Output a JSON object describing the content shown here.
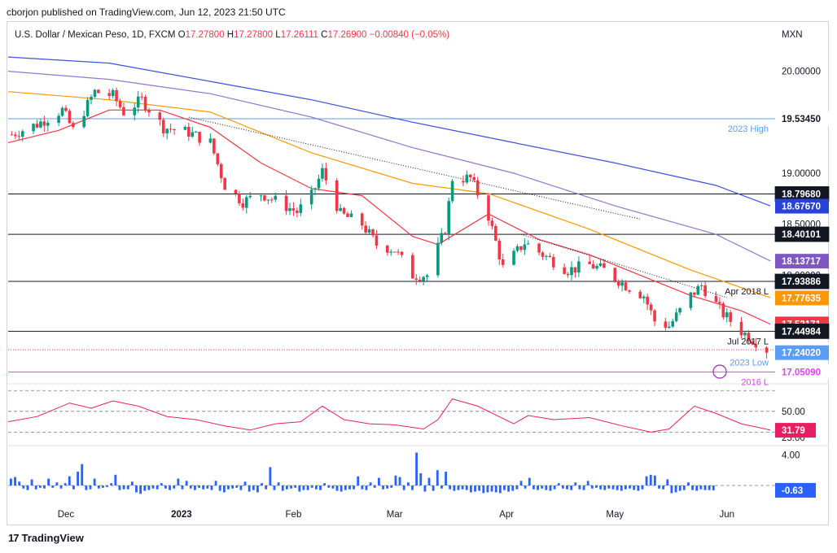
{
  "header": {
    "publish_line": "cborjon published on TradingView.com, Jun 12, 2023 21:50 UTC"
  },
  "ohlc_line": {
    "symbol": "U.S. Dollar / Mexican Peso, 1D, FXCM",
    "o_label": "O",
    "o_value": "17.27800",
    "h_label": "H",
    "h_value": "17.27800",
    "l_label": "L",
    "l_value": "17.26111",
    "c_label": "C",
    "c_value": "17.26900",
    "change": "−0.00840 (−0.05%)",
    "currency": "MXN"
  },
  "logo": {
    "text": "TradingView",
    "mark": "17"
  },
  "colors": {
    "up": "#089981",
    "down": "#f23645",
    "ema_short": "#f23645",
    "ema_mid": "#ff9800",
    "ema_long": "#9575cd",
    "ema_200": "#3f51d5",
    "rsi": "#e91e63",
    "hist": "#2962ff",
    "level_line": "#131722",
    "high_line": "#5b9cf6",
    "low_line": "#e040fb"
  },
  "chart_data": [
    {
      "type": "line",
      "title": "U.S. Dollar / Mexican Peso, 1D, FXCM",
      "ylim": [
        16.95,
        20.3
      ],
      "ytick_labels": [
        "20.00000",
        "19.00000",
        "18.50000",
        "18.00000"
      ],
      "ytick_values": [
        20.0,
        19.0,
        18.5,
        18.0
      ],
      "xtick_labels": [
        "Dec",
        "2023",
        "Feb",
        "Mar",
        "Apr",
        "May",
        "Jun"
      ],
      "x_range": [
        "2022-11-14",
        "2023-06-13"
      ],
      "price_axis_labels": [
        {
          "value": 19.5345,
          "text": "19.53450",
          "line": "2023 High",
          "kind": "high"
        },
        {
          "value": 18.7968,
          "text": "18.79680",
          "line": "",
          "kind": "level"
        },
        {
          "value": 18.6767,
          "text": "18.67670",
          "kind": "ema200"
        },
        {
          "value": 18.40101,
          "text": "18.40101",
          "line": "",
          "kind": "level"
        },
        {
          "value": 18.13717,
          "text": "18.13717",
          "kind": "ema100"
        },
        {
          "value": 17.93886,
          "text": "17.93886",
          "line": "Apr 2018 L",
          "kind": "level"
        },
        {
          "value": 17.77635,
          "text": "17.77635",
          "kind": "ema50"
        },
        {
          "value": 17.52171,
          "text": "17.52171",
          "kind": "ema20"
        },
        {
          "value": 17.44984,
          "text": "17.44984",
          "line": "Jul 2017 L",
          "kind": "level"
        },
        {
          "value": 17.269,
          "text": "17.26900",
          "kind": "last"
        },
        {
          "value": 17.2402,
          "text": "17.24020",
          "line": "2023 Low",
          "kind": "low2023"
        },
        {
          "value": 17.0509,
          "text": "17.05090",
          "line": "2016 L",
          "kind": "low2016"
        }
      ],
      "series": [
        {
          "name": "",
          "kind": "close",
          "points": [
            [
              "2022-11-15",
              19.38
            ],
            [
              "2022-11-22",
              19.48
            ],
            [
              "2022-11-29",
              19.62
            ],
            [
              "2022-12-02",
              19.42
            ],
            [
              "2022-12-08",
              19.8
            ],
            [
              "2022-12-13",
              19.76
            ],
            [
              "2022-12-16",
              19.6
            ],
            [
              "2022-12-21",
              19.72
            ],
            [
              "2022-12-27",
              19.45
            ],
            [
              "2023-01-03",
              19.4
            ],
            [
              "2023-01-09",
              19.3
            ],
            [
              "2023-01-13",
              18.88
            ],
            [
              "2023-01-18",
              18.72
            ],
            [
              "2023-01-23",
              18.8
            ],
            [
              "2023-01-27",
              18.73
            ],
            [
              "2023-02-02",
              18.62
            ],
            [
              "2023-02-06",
              18.78
            ],
            [
              "2023-02-09",
              19.02
            ],
            [
              "2023-02-14",
              18.6
            ],
            [
              "2023-02-20",
              18.5
            ],
            [
              "2023-02-24",
              18.3
            ],
            [
              "2023-03-01",
              18.25
            ],
            [
              "2023-03-06",
              18.0
            ],
            [
              "2023-03-10",
              18.0
            ],
            [
              "2023-03-15",
              18.45
            ],
            [
              "2023-03-17",
              18.95
            ],
            [
              "2023-03-22",
              18.95
            ],
            [
              "2023-03-27",
              18.58
            ],
            [
              "2023-03-31",
              18.07
            ],
            [
              "2023-04-06",
              18.32
            ],
            [
              "2023-04-12",
              18.18
            ],
            [
              "2023-04-18",
              18.05
            ],
            [
              "2023-04-24",
              18.1
            ],
            [
              "2023-04-28",
              18.05
            ],
            [
              "2023-05-04",
              17.9
            ],
            [
              "2023-05-09",
              17.8
            ],
            [
              "2023-05-12",
              17.55
            ],
            [
              "2023-05-16",
              17.5
            ],
            [
              "2023-05-22",
              17.8
            ],
            [
              "2023-05-25",
              17.9
            ],
            [
              "2023-05-31",
              17.62
            ],
            [
              "2023-06-05",
              17.45
            ],
            [
              "2023-06-09",
              17.35
            ],
            [
              "2023-06-12",
              17.27
            ]
          ]
        },
        {
          "name": "",
          "kind": "ema20",
          "points": [
            [
              "2022-11-14",
              19.3
            ],
            [
              "2022-11-28",
              19.42
            ],
            [
              "2022-12-12",
              19.62
            ],
            [
              "2022-12-26",
              19.62
            ],
            [
              "2023-01-09",
              19.45
            ],
            [
              "2023-01-23",
              19.1
            ],
            [
              "2023-02-06",
              18.85
            ],
            [
              "2023-02-20",
              18.78
            ],
            [
              "2023-03-06",
              18.38
            ],
            [
              "2023-03-13",
              18.3
            ],
            [
              "2023-03-27",
              18.6
            ],
            [
              "2023-04-10",
              18.35
            ],
            [
              "2023-04-24",
              18.2
            ],
            [
              "2023-05-08",
              18.0
            ],
            [
              "2023-05-22",
              17.8
            ],
            [
              "2023-06-05",
              17.65
            ],
            [
              "2023-06-13",
              17.52
            ]
          ]
        },
        {
          "name": "",
          "kind": "ema50",
          "points": [
            [
              "2022-11-14",
              19.8
            ],
            [
              "2022-12-12",
              19.72
            ],
            [
              "2023-01-09",
              19.6
            ],
            [
              "2023-02-06",
              19.2
            ],
            [
              "2023-03-06",
              18.9
            ],
            [
              "2023-03-27",
              18.8
            ],
            [
              "2023-04-24",
              18.45
            ],
            [
              "2023-05-22",
              18.05
            ],
            [
              "2023-06-13",
              17.78
            ]
          ]
        },
        {
          "name": "",
          "kind": "ema100",
          "points": [
            [
              "2022-11-14",
              20.0
            ],
            [
              "2022-12-12",
              19.92
            ],
            [
              "2023-01-09",
              19.78
            ],
            [
              "2023-02-06",
              19.55
            ],
            [
              "2023-03-06",
              19.25
            ],
            [
              "2023-04-03",
              19.0
            ],
            [
              "2023-05-01",
              18.68
            ],
            [
              "2023-05-29",
              18.4
            ],
            [
              "2023-06-13",
              18.14
            ]
          ]
        },
        {
          "name": "",
          "kind": "ema200",
          "points": [
            [
              "2022-11-14",
              20.14
            ],
            [
              "2022-12-12",
              20.08
            ],
            [
              "2023-01-09",
              19.9
            ],
            [
              "2023-02-06",
              19.72
            ],
            [
              "2023-03-06",
              19.5
            ],
            [
              "2023-04-03",
              19.3
            ],
            [
              "2023-05-01",
              19.1
            ],
            [
              "2023-05-29",
              18.88
            ],
            [
              "2023-06-13",
              18.68
            ]
          ]
        }
      ]
    },
    {
      "type": "line",
      "title": "",
      "ylim": [
        17,
        78
      ],
      "ytick_labels": [
        "50.00",
        "25.00"
      ],
      "ytick_values": [
        50,
        25
      ],
      "last_label": "31.79",
      "last_value": 31.79,
      "series": [
        {
          "name": "",
          "kind": "rsi",
          "points": [
            [
              "2022-11-14",
              40
            ],
            [
              "2022-11-22",
              45
            ],
            [
              "2022-12-01",
              58
            ],
            [
              "2022-12-07",
              53
            ],
            [
              "2022-12-13",
              60
            ],
            [
              "2022-12-20",
              55
            ],
            [
              "2022-12-28",
              45
            ],
            [
              "2023-01-05",
              42
            ],
            [
              "2023-01-13",
              36
            ],
            [
              "2023-01-20",
              32
            ],
            [
              "2023-01-27",
              38
            ],
            [
              "2023-02-03",
              40
            ],
            [
              "2023-02-09",
              55
            ],
            [
              "2023-02-15",
              42
            ],
            [
              "2023-02-22",
              38
            ],
            [
              "2023-03-01",
              37
            ],
            [
              "2023-03-09",
              33
            ],
            [
              "2023-03-13",
              42
            ],
            [
              "2023-03-17",
              62
            ],
            [
              "2023-03-24",
              55
            ],
            [
              "2023-04-03",
              38
            ],
            [
              "2023-04-07",
              46
            ],
            [
              "2023-04-14",
              42
            ],
            [
              "2023-04-24",
              44
            ],
            [
              "2023-05-03",
              36
            ],
            [
              "2023-05-11",
              30
            ],
            [
              "2023-05-16",
              33
            ],
            [
              "2023-05-23",
              55
            ],
            [
              "2023-05-29",
              48
            ],
            [
              "2023-06-05",
              38
            ],
            [
              "2023-06-13",
              32
            ]
          ]
        }
      ]
    },
    {
      "type": "bar",
      "title": "",
      "ylim": [
        -1.6,
        5
      ],
      "ytick_labels": [
        "4.00"
      ],
      "ytick_values": [
        4
      ],
      "last_label": "-0.63",
      "last_value": -0.63,
      "series": [
        {
          "name": "",
          "kind": "histogram",
          "values": [
            0.9,
            1.1,
            0.5,
            -0.4,
            -0.6,
            0.8,
            -0.5,
            -0.3,
            -0.4,
            0.9,
            -0.3,
            0.4,
            -0.4,
            0.3,
            1.2,
            -0.5,
            1.8,
            2.8,
            -0.6,
            -0.5,
            0.9,
            -0.4,
            -0.3,
            -0.2,
            0.3,
            1.4,
            -0.6,
            -0.5,
            -0.5,
            0.5,
            -0.9,
            -1.1,
            -0.7,
            -0.6,
            -0.4,
            -0.5,
            0.3,
            -0.4,
            -0.6,
            -0.4,
            0.9,
            -0.5,
            0.6,
            -0.4,
            -0.6,
            -0.3,
            -0.5,
            -0.4,
            -0.6,
            0.6,
            -0.7,
            -0.9,
            -0.5,
            -0.4,
            -0.3,
            -0.6,
            0.5,
            -0.8,
            -0.6,
            -0.9,
            0.3,
            -0.5,
            2.4,
            -0.6,
            0.4,
            -0.7,
            -0.5,
            -0.4,
            -0.3,
            -0.8,
            -0.6,
            -0.6,
            -0.3,
            -0.5,
            -0.6,
            0.3,
            -0.3,
            -0.4,
            -0.7,
            -0.8,
            -0.6,
            -0.5,
            -0.5,
            1.2,
            -0.5,
            -0.6,
            0.4,
            -0.3,
            1.0,
            -0.5,
            -0.4,
            -0.3,
            1.3,
            1.1,
            -0.6,
            0.4,
            -0.6,
            4.3,
            1.6,
            -0.8,
            1.0,
            -0.7,
            2.0,
            -0.4,
            1.8,
            -0.5,
            -0.7,
            -0.6,
            -0.5,
            -0.6,
            -0.9,
            -0.8,
            -0.7,
            -1.0,
            -0.9,
            -0.8,
            -0.9,
            -1.0,
            -0.6,
            -0.8,
            -0.7,
            -0.5,
            0.6,
            -0.4,
            1.0,
            -0.5,
            -0.6,
            -0.4,
            -0.6,
            -0.7,
            -0.5,
            0.3,
            -0.4,
            -0.5,
            -0.6,
            0.4,
            -0.5,
            -0.6,
            0.6,
            -0.4,
            -0.3,
            -0.5,
            -0.6,
            -0.4,
            -0.5,
            -0.6,
            -0.7,
            -0.5,
            -0.4,
            -0.6,
            -0.7,
            -0.5,
            1.2,
            1.4,
            1.3,
            -0.4,
            -0.5,
            0.8,
            -1.0,
            -0.9,
            -0.7,
            -0.6,
            0.4,
            -0.6,
            -0.7,
            -0.5,
            -0.6,
            -0.6,
            -0.63
          ]
        }
      ]
    }
  ]
}
